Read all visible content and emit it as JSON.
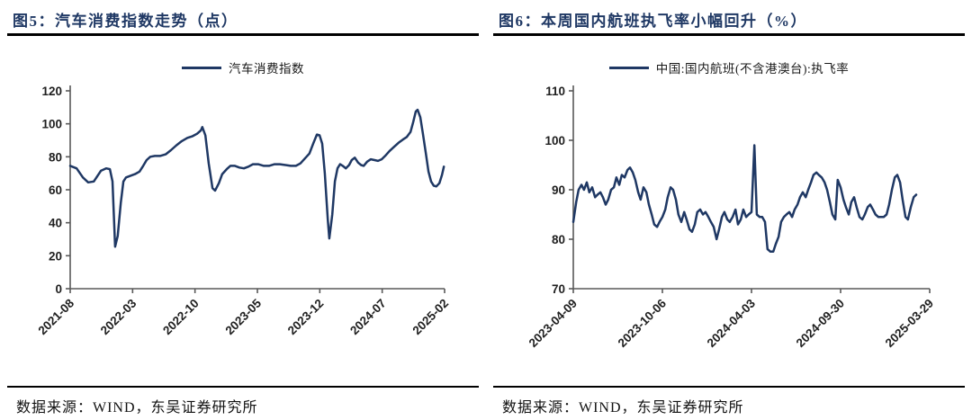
{
  "style": {
    "accent_navy": "#1F3864",
    "axis_color": "#595959",
    "tick_text_color": "#1f1f1f",
    "rule_color": "#000000",
    "background": "#ffffff"
  },
  "figures": [
    {
      "title": "图5：汽车消费指数走势（点）",
      "source_note": "数据来源：WIND，东吴证券研究所",
      "chart_data": {
        "type": "line",
        "series_name": "汽车消费指数",
        "legend_position": "top-center",
        "grid": false,
        "line_color": "#1F3864",
        "x_axis": {
          "type": "time",
          "tick_labels": [
            "2021-08",
            "2022-03",
            "2022-10",
            "2023-05",
            "2023-12",
            "2024-07",
            "2025-02"
          ],
          "label_rotation_deg": -45
        },
        "y_axis": {
          "min": 0,
          "max": 120,
          "ticks": [
            0,
            20,
            40,
            60,
            80,
            100,
            120
          ]
        },
        "points_encoding": "each point = [fraction of x-axis from first tick 2021-08 to last tick 2025-02, index value in points]",
        "points": [
          [
            0.0,
            74.5
          ],
          [
            0.017,
            73
          ],
          [
            0.034,
            67.5
          ],
          [
            0.048,
            64.5
          ],
          [
            0.063,
            65
          ],
          [
            0.082,
            71.5
          ],
          [
            0.096,
            73
          ],
          [
            0.106,
            72.5
          ],
          [
            0.113,
            65
          ],
          [
            0.12,
            25.5
          ],
          [
            0.127,
            32
          ],
          [
            0.135,
            52
          ],
          [
            0.142,
            65
          ],
          [
            0.149,
            67.5
          ],
          [
            0.161,
            68.5
          ],
          [
            0.173,
            69.5
          ],
          [
            0.185,
            71
          ],
          [
            0.195,
            74.5
          ],
          [
            0.204,
            78
          ],
          [
            0.214,
            80
          ],
          [
            0.226,
            80.5
          ],
          [
            0.24,
            80.5
          ],
          [
            0.255,
            81.5
          ],
          [
            0.269,
            84
          ],
          [
            0.284,
            87
          ],
          [
            0.298,
            89.5
          ],
          [
            0.313,
            91.5
          ],
          [
            0.327,
            92.5
          ],
          [
            0.339,
            94
          ],
          [
            0.349,
            96
          ],
          [
            0.353,
            98
          ],
          [
            0.361,
            93
          ],
          [
            0.37,
            76
          ],
          [
            0.38,
            61
          ],
          [
            0.387,
            59.5
          ],
          [
            0.397,
            64
          ],
          [
            0.406,
            69.5
          ],
          [
            0.418,
            72.5
          ],
          [
            0.428,
            74.5
          ],
          [
            0.44,
            74.5
          ],
          [
            0.452,
            73.5
          ],
          [
            0.464,
            73
          ],
          [
            0.476,
            74
          ],
          [
            0.488,
            75.5
          ],
          [
            0.502,
            75.5
          ],
          [
            0.517,
            74.5
          ],
          [
            0.531,
            74.5
          ],
          [
            0.546,
            75.5
          ],
          [
            0.56,
            75.5
          ],
          [
            0.575,
            75
          ],
          [
            0.589,
            74.5
          ],
          [
            0.603,
            74.5
          ],
          [
            0.615,
            76
          ],
          [
            0.627,
            79
          ],
          [
            0.639,
            82
          ],
          [
            0.649,
            88
          ],
          [
            0.659,
            93.5
          ],
          [
            0.666,
            93
          ],
          [
            0.673,
            88
          ],
          [
            0.68,
            70
          ],
          [
            0.688,
            42
          ],
          [
            0.692,
            30.5
          ],
          [
            0.7,
            45
          ],
          [
            0.707,
            65
          ],
          [
            0.714,
            73
          ],
          [
            0.721,
            75.5
          ],
          [
            0.728,
            74.5
          ],
          [
            0.736,
            73
          ],
          [
            0.745,
            75
          ],
          [
            0.752,
            78
          ],
          [
            0.76,
            79.5
          ],
          [
            0.769,
            76.5
          ],
          [
            0.777,
            75
          ],
          [
            0.784,
            74.5
          ],
          [
            0.793,
            77
          ],
          [
            0.803,
            78.5
          ],
          [
            0.813,
            78
          ],
          [
            0.822,
            77.5
          ],
          [
            0.832,
            78.5
          ],
          [
            0.841,
            80.5
          ],
          [
            0.853,
            83.5
          ],
          [
            0.865,
            86
          ],
          [
            0.877,
            88.5
          ],
          [
            0.889,
            90.5
          ],
          [
            0.899,
            92
          ],
          [
            0.909,
            95
          ],
          [
            0.916,
            101
          ],
          [
            0.923,
            107.5
          ],
          [
            0.928,
            108.5
          ],
          [
            0.935,
            104
          ],
          [
            0.942,
            94
          ],
          [
            0.95,
            82
          ],
          [
            0.957,
            71
          ],
          [
            0.964,
            65
          ],
          [
            0.971,
            62.5
          ],
          [
            0.978,
            62
          ],
          [
            0.986,
            64
          ],
          [
            0.993,
            69
          ],
          [
            0.998,
            74
          ]
        ]
      }
    },
    {
      "title": "图6：本周国内航班执飞率小幅回升（%）",
      "source_note": "数据来源：WIND，东吴证券研究所",
      "chart_data": {
        "type": "line",
        "series_name": "中国:国内航班(不含港澳台):执飞率",
        "legend_position": "top-center",
        "grid": false,
        "line_color": "#1F3864",
        "x_axis": {
          "type": "time",
          "tick_labels": [
            "2023-04-09",
            "2023-10-06",
            "2024-04-03",
            "2024-09-30",
            "2025-03-29"
          ],
          "label_rotation_deg": -45
        },
        "y_axis": {
          "min": 70,
          "max": 110,
          "ticks": [
            70,
            80,
            90,
            100,
            110
          ]
        },
        "points_encoding": "each point = [fraction of x-axis from first tick 2023-04-09 to last tick 2025-03-29, execution rate %]",
        "points": [
          [
            0.0,
            83.5
          ],
          [
            0.008,
            87.5
          ],
          [
            0.015,
            90
          ],
          [
            0.023,
            91
          ],
          [
            0.03,
            90
          ],
          [
            0.038,
            91.5
          ],
          [
            0.045,
            89.5
          ],
          [
            0.053,
            90.5
          ],
          [
            0.061,
            88.5
          ],
          [
            0.068,
            89
          ],
          [
            0.076,
            89.5
          ],
          [
            0.083,
            88.5
          ],
          [
            0.091,
            87
          ],
          [
            0.098,
            88
          ],
          [
            0.106,
            90
          ],
          [
            0.114,
            90.5
          ],
          [
            0.121,
            92.5
          ],
          [
            0.129,
            91
          ],
          [
            0.136,
            93
          ],
          [
            0.144,
            92.5
          ],
          [
            0.152,
            94
          ],
          [
            0.159,
            94.5
          ],
          [
            0.167,
            93.5
          ],
          [
            0.174,
            92
          ],
          [
            0.182,
            89.5
          ],
          [
            0.189,
            88
          ],
          [
            0.197,
            90.5
          ],
          [
            0.205,
            89.5
          ],
          [
            0.212,
            87
          ],
          [
            0.22,
            85
          ],
          [
            0.227,
            83
          ],
          [
            0.235,
            82.5
          ],
          [
            0.242,
            83.5
          ],
          [
            0.25,
            84.5
          ],
          [
            0.258,
            86
          ],
          [
            0.265,
            88.5
          ],
          [
            0.273,
            90.5
          ],
          [
            0.28,
            90
          ],
          [
            0.288,
            88
          ],
          [
            0.295,
            85
          ],
          [
            0.303,
            83.5
          ],
          [
            0.311,
            85.5
          ],
          [
            0.318,
            84
          ],
          [
            0.326,
            82
          ],
          [
            0.333,
            81.5
          ],
          [
            0.341,
            83
          ],
          [
            0.348,
            85.5
          ],
          [
            0.356,
            86
          ],
          [
            0.364,
            85
          ],
          [
            0.371,
            85.5
          ],
          [
            0.379,
            84.5
          ],
          [
            0.386,
            83.5
          ],
          [
            0.394,
            82.5
          ],
          [
            0.402,
            80
          ],
          [
            0.409,
            82
          ],
          [
            0.417,
            84.5
          ],
          [
            0.424,
            85.5
          ],
          [
            0.432,
            84
          ],
          [
            0.439,
            83.5
          ],
          [
            0.447,
            84.5
          ],
          [
            0.455,
            86
          ],
          [
            0.462,
            83
          ],
          [
            0.47,
            84
          ],
          [
            0.477,
            86
          ],
          [
            0.485,
            84.5
          ],
          [
            0.492,
            85
          ],
          [
            0.5,
            85.5
          ],
          [
            0.508,
            99
          ],
          [
            0.515,
            85
          ],
          [
            0.523,
            84.5
          ],
          [
            0.53,
            84.5
          ],
          [
            0.538,
            83.5
          ],
          [
            0.545,
            78
          ],
          [
            0.553,
            77.5
          ],
          [
            0.561,
            77.5
          ],
          [
            0.568,
            79
          ],
          [
            0.576,
            80.5
          ],
          [
            0.583,
            83.5
          ],
          [
            0.591,
            84.5
          ],
          [
            0.598,
            85
          ],
          [
            0.606,
            85.5
          ],
          [
            0.614,
            84.5
          ],
          [
            0.621,
            86
          ],
          [
            0.629,
            87
          ],
          [
            0.636,
            88.5
          ],
          [
            0.644,
            89.5
          ],
          [
            0.652,
            88.5
          ],
          [
            0.659,
            90
          ],
          [
            0.667,
            91.5
          ],
          [
            0.674,
            93
          ],
          [
            0.682,
            93.5
          ],
          [
            0.689,
            93
          ],
          [
            0.697,
            92.5
          ],
          [
            0.705,
            91.5
          ],
          [
            0.712,
            90
          ],
          [
            0.72,
            87.5
          ],
          [
            0.727,
            85
          ],
          [
            0.735,
            84
          ],
          [
            0.742,
            92
          ],
          [
            0.75,
            90.5
          ],
          [
            0.758,
            88
          ],
          [
            0.765,
            86.5
          ],
          [
            0.773,
            85
          ],
          [
            0.78,
            87.5
          ],
          [
            0.788,
            88.5
          ],
          [
            0.795,
            86.5
          ],
          [
            0.803,
            84.5
          ],
          [
            0.811,
            84
          ],
          [
            0.818,
            85
          ],
          [
            0.826,
            86.5
          ],
          [
            0.833,
            87
          ],
          [
            0.841,
            86
          ],
          [
            0.848,
            85
          ],
          [
            0.856,
            84.5
          ],
          [
            0.864,
            84.5
          ],
          [
            0.871,
            84.5
          ],
          [
            0.879,
            85
          ],
          [
            0.886,
            87
          ],
          [
            0.894,
            90
          ],
          [
            0.902,
            92.5
          ],
          [
            0.909,
            93
          ],
          [
            0.917,
            91.5
          ],
          [
            0.924,
            88
          ],
          [
            0.932,
            84.5
          ],
          [
            0.939,
            84
          ],
          [
            0.947,
            86.5
          ],
          [
            0.955,
            88.5
          ],
          [
            0.962,
            89
          ]
        ]
      }
    }
  ]
}
